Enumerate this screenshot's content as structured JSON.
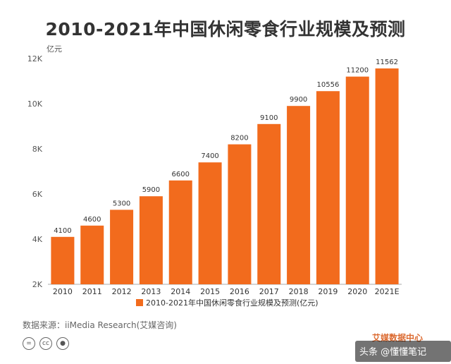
{
  "title": "2010-2021年中国休闲零食行业规模及预测",
  "source": "数据来源：iiMedia Research(艾媒咨询)",
  "watermark": {
    "logo": "艾媒数据中心",
    "overlay": "头条 @懂懂笔记"
  },
  "license_icons": [
    "creative-commons-icon",
    "cc-icon",
    "attribution-icon"
  ],
  "colors": {
    "bar": "#f26b1d",
    "axis": "#999999",
    "text": "#333333"
  },
  "chart_data": {
    "type": "bar",
    "categories": [
      "2010",
      "2011",
      "2012",
      "2013",
      "2014",
      "2015",
      "2016",
      "2017",
      "2018",
      "2019",
      "2020",
      "2021E"
    ],
    "series": [
      {
        "name": "2010-2021年中国休闲零食行业规模及预测(亿元)",
        "values": [
          4100,
          4600,
          5300,
          5900,
          6600,
          7400,
          8200,
          9100,
          9900,
          10556,
          11200,
          11562
        ]
      }
    ],
    "ylabel": "亿元",
    "ylim": [
      2000,
      12000
    ],
    "yticks": [
      2000,
      4000,
      6000,
      8000,
      10000,
      12000
    ],
    "ytick_labels": [
      "2K",
      "4K",
      "6K",
      "8K",
      "10K",
      "12K"
    ],
    "grid": false,
    "legend": "bottom-center"
  }
}
